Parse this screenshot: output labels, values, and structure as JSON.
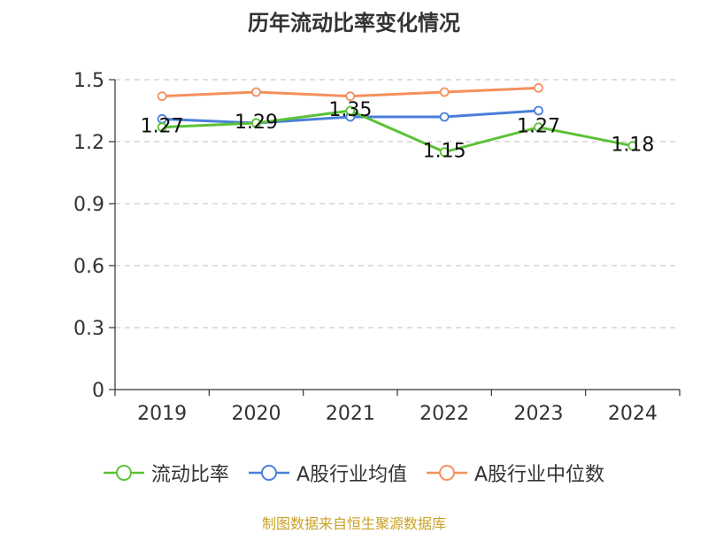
{
  "chart_data": {
    "type": "line",
    "title": "历年流动比率变化情况",
    "categories": [
      "2019",
      "2020",
      "2021",
      "2022",
      "2023",
      "2024"
    ],
    "ylim": [
      0,
      1.5
    ],
    "yticks": [
      "0",
      "0.3",
      "0.6",
      "0.9",
      "1.2",
      "1.5"
    ],
    "grid": true,
    "legend_position": "bottom",
    "series": [
      {
        "name": "流动比率",
        "color": "#5bc236",
        "values": [
          1.27,
          1.29,
          1.35,
          1.15,
          1.27,
          1.18
        ],
        "labels": [
          "1.27",
          "1.29",
          "1.35",
          "1.15",
          "1.27",
          "1.18"
        ]
      },
      {
        "name": "A股行业均值",
        "color": "#4a7fd9",
        "values": [
          1.31,
          1.29,
          1.32,
          1.32,
          1.35,
          null
        ]
      },
      {
        "name": "A股行业中位数",
        "color": "#f4905c",
        "values": [
          1.42,
          1.44,
          1.42,
          1.44,
          1.46,
          null
        ]
      }
    ]
  },
  "footer": {
    "source": "制图数据来自恒生聚源数据库"
  }
}
